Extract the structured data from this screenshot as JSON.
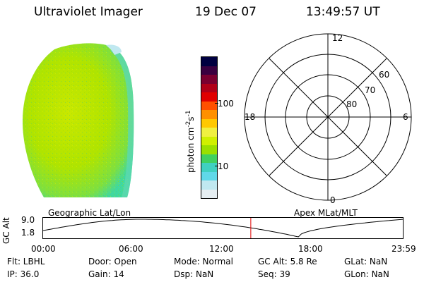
{
  "header": {
    "instrument": "Ultraviolet Imager",
    "date": "19 Dec 07",
    "time": "13:49:57 UT"
  },
  "colorbar": {
    "unit_label": "photon cm-2s-1",
    "ticks": [
      "100",
      "10"
    ],
    "colors": [
      "#000040",
      "#3a0040",
      "#7a0030",
      "#b00018",
      "#e00000",
      "#ff5000",
      "#ff9000",
      "#ffc800",
      "#f0f040",
      "#d0f000",
      "#9ae000",
      "#40d060",
      "#40d0c0",
      "#60d8e8",
      "#c0e8f0",
      "#e6eef2"
    ]
  },
  "polar": {
    "mlt_labels": [
      "12",
      "6",
      "0",
      "18"
    ],
    "mlat_labels": [
      "60",
      "70",
      "80"
    ]
  },
  "altitude_panel": {
    "left_title": "Geographic Lat/Lon",
    "right_title": "Apex MLat/MLT",
    "y_axis_label": "GC Alt",
    "y_ticks": [
      "9.0",
      "1.8"
    ],
    "x_ticks": [
      "00:00",
      "06:00",
      "12:00",
      "18:00",
      "23:59"
    ],
    "current_time_hours": 13.83,
    "curve_color": "#000000",
    "marker_color": "#e00000"
  },
  "info": {
    "filter": "Flt: LBHL",
    "ip": "IP: 36.0",
    "door": "Door: Open",
    "gain": "Gain: 14",
    "mode": "Mode: Normal",
    "dsp": "Dsp:       NaN",
    "gc_alt": "GC Alt: 5.8 Re",
    "seq": "Seq: 39",
    "glat": "GLat:       NaN",
    "glon": "GLon:       NaN"
  }
}
